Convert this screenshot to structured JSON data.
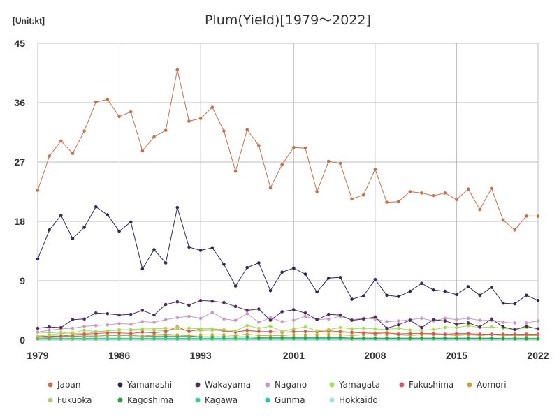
{
  "chart_data": {
    "type": "line",
    "title": "Plum(Yield)[1979～2022]",
    "unit_label": "[Unit:kt]",
    "xlabel": "",
    "ylabel": "",
    "ylim": [
      0,
      45
    ],
    "y_ticks": [
      0,
      9,
      18,
      27,
      36,
      45
    ],
    "x_ticks": [
      1979,
      1986,
      1993,
      2001,
      2008,
      2015,
      2022
    ],
    "x": [
      1979,
      1980,
      1981,
      1982,
      1983,
      1984,
      1985,
      1986,
      1987,
      1988,
      1989,
      1990,
      1991,
      1992,
      1993,
      1994,
      1995,
      1996,
      1997,
      1998,
      1999,
      2000,
      2001,
      2002,
      2003,
      2004,
      2005,
      2006,
      2007,
      2008,
      2009,
      2010,
      2011,
      2012,
      2013,
      2014,
      2015,
      2016,
      2017,
      2018,
      2019,
      2020,
      2021,
      2022
    ],
    "grid": true,
    "legend_position": "bottom",
    "series": [
      {
        "name": "Japan",
        "color": "#c8704a",
        "values": [
          22.7,
          27.9,
          30.2,
          28.3,
          31.7,
          36.1,
          36.5,
          33.9,
          34.6,
          28.7,
          30.8,
          31.8,
          41.0,
          33.2,
          33.6,
          35.3,
          31.7,
          25.6,
          31.9,
          29.5,
          23.1,
          26.6,
          29.2,
          29.1,
          22.5,
          27.1,
          26.8,
          21.4,
          22.0,
          25.9,
          20.9,
          21.0,
          22.5,
          22.3,
          21.9,
          22.3,
          21.3,
          22.9,
          19.8,
          23.0,
          18.2,
          16.7,
          18.8,
          18.8
        ]
      },
      {
        "name": "Yamanashi",
        "color": "#2b2a57",
        "values": [
          12.3,
          16.7,
          18.9,
          15.4,
          17.1,
          20.2,
          19.0,
          16.5,
          17.9,
          10.8,
          13.7,
          11.7,
          20.1,
          14.1,
          13.6,
          14.0,
          11.5,
          8.2,
          11.0,
          11.7,
          7.5,
          10.3,
          10.9,
          10.0,
          7.3,
          9.4,
          9.5,
          6.2,
          6.7,
          9.2,
          6.8,
          6.6,
          7.4,
          8.6,
          7.6,
          7.4,
          6.9,
          8.1,
          6.8,
          8.0,
          5.6,
          5.5,
          6.8,
          6.0
        ]
      },
      {
        "name": "Wakayama",
        "color": "#4a2d5c",
        "values": [
          1.8,
          2.0,
          1.9,
          3.1,
          3.2,
          4.1,
          4.0,
          3.8,
          3.9,
          4.5,
          3.8,
          5.4,
          5.8,
          5.3,
          6.0,
          5.9,
          5.7,
          5.1,
          4.5,
          4.7,
          3.0,
          4.3,
          4.6,
          4.1,
          3.1,
          3.9,
          3.8,
          3.0,
          3.2,
          3.5,
          1.8,
          2.3,
          3.0,
          1.9,
          3.1,
          2.9,
          2.4,
          2.6,
          2.0,
          3.2,
          2.0,
          1.6,
          2.1,
          1.7
        ]
      },
      {
        "name": "Nagano",
        "color": "#c99bc4",
        "values": [
          1.2,
          1.5,
          1.7,
          1.8,
          2.1,
          2.2,
          2.3,
          2.5,
          2.4,
          2.8,
          2.7,
          3.1,
          3.4,
          3.6,
          3.3,
          4.2,
          3.2,
          3.0,
          4.0,
          2.7,
          3.4,
          2.8,
          3.0,
          3.6,
          3.1,
          3.2,
          3.6,
          3.1,
          3.3,
          3.2,
          2.8,
          2.9,
          3.1,
          3.3,
          2.9,
          3.3,
          3.1,
          3.3,
          3.0,
          3.0,
          2.7,
          2.6,
          2.6,
          2.9
        ]
      },
      {
        "name": "Yamagata",
        "color": "#9de04a",
        "values": [
          0.6,
          0.8,
          1.0,
          1.1,
          1.5,
          1.3,
          1.4,
          1.5,
          1.6,
          1.7,
          1.7,
          1.8,
          1.9,
          1.8,
          1.7,
          1.7,
          1.6,
          1.4,
          2.2,
          1.8,
          2.1,
          1.3,
          1.7,
          2.0,
          1.4,
          1.6,
          1.9,
          1.7,
          1.8,
          1.7,
          1.6,
          1.8,
          1.5,
          1.5,
          1.6,
          1.9,
          1.9,
          2.2,
          1.9,
          2.0,
          1.8,
          1.6,
          1.9,
          1.8
        ]
      },
      {
        "name": "Fukushima",
        "color": "#e0506e",
        "values": [
          0.5,
          0.5,
          0.6,
          0.8,
          0.9,
          1.0,
          1.1,
          1.1,
          1.0,
          1.2,
          1.1,
          1.3,
          2.0,
          1.3,
          1.7,
          1.7,
          1.4,
          1.2,
          1.5,
          1.3,
          1.3,
          1.2,
          1.3,
          1.3,
          1.3,
          1.4,
          1.3,
          1.2,
          1.1,
          1.0,
          1.1,
          0.9,
          1.0,
          1.0,
          1.0,
          0.9,
          1.0,
          1.0,
          0.9,
          0.9,
          0.9,
          0.9,
          0.9,
          0.9
        ]
      },
      {
        "name": "Aomori",
        "color": "#c8a436",
        "values": [
          0.3,
          0.4,
          0.5,
          0.5,
          0.6,
          0.6,
          0.7,
          0.7,
          0.7,
          0.6,
          0.8,
          0.9,
          0.8,
          0.7,
          0.8,
          0.8,
          0.8,
          0.7,
          0.9,
          0.7,
          0.7,
          0.7,
          0.8,
          0.8,
          0.8,
          0.8,
          0.8,
          0.7,
          0.8,
          0.8,
          0.8,
          0.8,
          0.7,
          0.8,
          0.8,
          0.8,
          0.7,
          0.8,
          0.7,
          0.8,
          0.7,
          0.7,
          0.7,
          0.7
        ]
      },
      {
        "name": "Fukuoka",
        "color": "#b5c97a",
        "values": [
          1.2,
          1.1,
          1.2,
          1.0,
          1.0,
          1.2,
          1.4,
          1.6,
          1.5,
          1.5,
          1.5,
          1.4,
          1.7,
          1.4,
          1.4,
          1.5,
          1.4,
          1.3,
          1.4,
          1.3,
          1.2,
          1.2,
          1.2,
          1.3,
          1.2,
          1.2,
          1.2,
          1.1,
          1.1,
          1.1,
          1.1,
          1.0,
          1.0,
          1.0,
          0.9,
          0.9,
          0.9,
          0.9,
          0.9,
          0.9,
          0.8,
          0.8,
          0.8,
          0.8
        ]
      },
      {
        "name": "Kagoshima",
        "color": "#2e9e44",
        "values": [
          0.5,
          0.6,
          0.6,
          0.6,
          0.6,
          0.6,
          0.7,
          0.7,
          0.7,
          0.6,
          0.6,
          0.6,
          0.6,
          0.6,
          0.5,
          0.5,
          0.5,
          0.5,
          0.5,
          0.4,
          0.4,
          0.4,
          0.4,
          0.4,
          0.4,
          0.4,
          0.4,
          0.3,
          0.3,
          0.3,
          0.3,
          0.3,
          0.3,
          0.3,
          0.3,
          0.3,
          0.3,
          0.3,
          0.3,
          0.3,
          0.2,
          0.2,
          0.2,
          0.2
        ]
      },
      {
        "name": "Kagawa",
        "color": "#3ccf8e",
        "values": [
          0.3,
          0.3,
          0.3,
          0.3,
          0.3,
          0.3,
          0.3,
          0.3,
          0.3,
          0.3,
          0.3,
          0.3,
          0.3,
          0.3,
          0.3,
          0.3,
          0.3,
          0.3,
          0.3,
          0.3,
          0.3,
          0.3,
          0.3,
          0.3,
          0.3,
          0.3,
          0.3,
          0.3,
          0.3,
          0.3,
          0.3,
          0.3,
          0.3,
          0.3,
          0.3,
          0.3,
          0.3,
          0.3,
          0.3,
          0.3,
          0.3,
          0.3,
          0.3,
          0.3
        ]
      },
      {
        "name": "Gunma",
        "color": "#1fc4a8",
        "values": [
          0.2,
          0.2,
          0.2,
          0.2,
          0.2,
          0.2,
          0.2,
          0.2,
          0.2,
          0.2,
          0.2,
          0.2,
          0.2,
          0.2,
          0.2,
          0.2,
          0.2,
          0.2,
          0.2,
          0.2,
          0.2,
          0.2,
          0.2,
          0.2,
          0.2,
          0.2,
          0.2,
          0.2,
          0.2,
          0.2,
          0.2,
          0.2,
          0.2,
          0.2,
          0.2,
          0.2,
          0.2,
          0.2,
          0.2,
          0.2,
          0.2,
          0.2,
          0.2,
          0.2
        ]
      },
      {
        "name": "Hokkaido",
        "color": "#8de8cf",
        "values": [
          0.1,
          0.1,
          0.1,
          0.1,
          0.1,
          0.1,
          0.1,
          0.1,
          0.1,
          0.1,
          0.1,
          0.1,
          0.1,
          0.1,
          0.1,
          0.1,
          0.1,
          0.1,
          0.1,
          0.1,
          0.1,
          0.1,
          0.1,
          0.1,
          0.1,
          0.1,
          0.1,
          0.1,
          0.1,
          0.1,
          0.1,
          0.1,
          0.1,
          0.1,
          0.1,
          0.1,
          0.1,
          0.1,
          0.1,
          0.1,
          0.1,
          0.1,
          0.1,
          0.1
        ]
      }
    ]
  }
}
